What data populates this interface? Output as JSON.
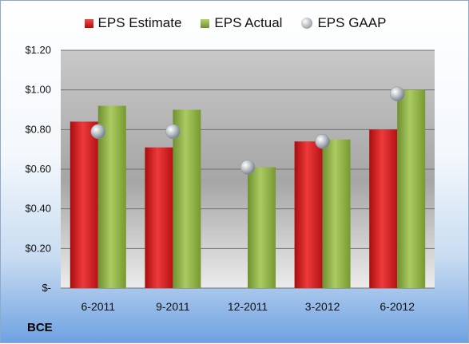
{
  "chart_data": {
    "type": "bar",
    "categories": [
      "6-2011",
      "9-2011",
      "12-2011",
      "3-2012",
      "6-2012"
    ],
    "series": [
      {
        "name": "EPS Estimate",
        "kind": "bar",
        "color": "#d0191b",
        "values": [
          0.84,
          0.71,
          null,
          0.74,
          0.8
        ]
      },
      {
        "name": "EPS Actual",
        "kind": "bar",
        "color": "#8db043",
        "values": [
          0.92,
          0.9,
          0.61,
          0.75,
          1.0
        ]
      },
      {
        "name": "EPS GAAP",
        "kind": "marker",
        "color": "#a9afb7",
        "values": [
          0.79,
          0.79,
          0.61,
          0.74,
          0.98
        ]
      }
    ],
    "yticks": [
      "$-",
      "$0.20",
      "$0.40",
      "$0.60",
      "$0.80",
      "$1.00",
      "$1.20"
    ],
    "ylim": [
      0,
      1.2
    ],
    "grid": true,
    "legend_position": "top"
  },
  "legend": {
    "estimate": "EPS Estimate",
    "actual": "EPS Actual",
    "gaap": "EPS GAAP"
  },
  "ticker": "BCE"
}
